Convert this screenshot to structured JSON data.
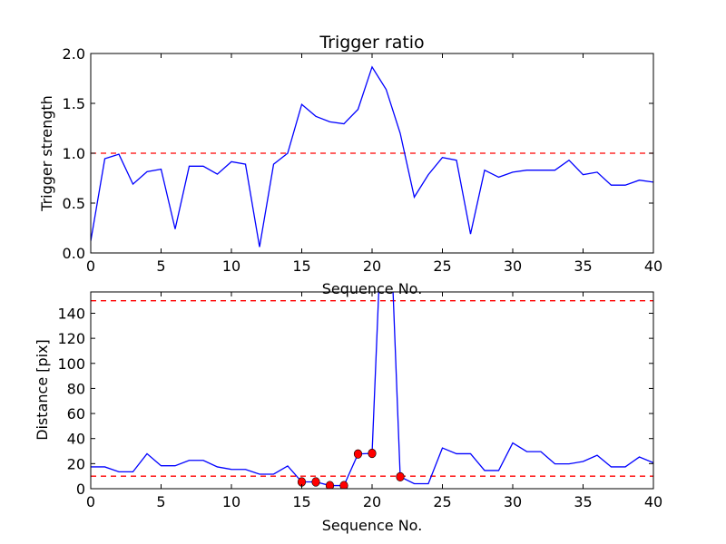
{
  "chart_data": [
    {
      "type": "line",
      "title": "Trigger ratio",
      "xlabel": "Sequence No.",
      "ylabel": "Trigger strength",
      "xlim": [
        0,
        40
      ],
      "ylim": [
        0,
        2.0
      ],
      "xticks": [
        "0",
        "5",
        "10",
        "15",
        "20",
        "25",
        "30",
        "35",
        "40"
      ],
      "yticks": [
        "0.0",
        "0.5",
        "1.0",
        "1.5",
        "2.0"
      ],
      "x": [
        0,
        1,
        2,
        3,
        4,
        5,
        6,
        7,
        8,
        9,
        10,
        11,
        12,
        13,
        14,
        15,
        16,
        17,
        18,
        19,
        20,
        21,
        22,
        23,
        24,
        25,
        26,
        27,
        28,
        29,
        30,
        31,
        32,
        33,
        34,
        35,
        36,
        37,
        38,
        39,
        40
      ],
      "series": [
        {
          "name": "trigger strength",
          "color": "#0000ff",
          "values": [
            0.12,
            0.945,
            0.99,
            0.69,
            0.815,
            0.84,
            0.24,
            0.87,
            0.87,
            0.79,
            0.915,
            0.89,
            0.06,
            0.89,
            1.0,
            1.49,
            1.37,
            1.315,
            1.295,
            1.44,
            1.865,
            1.64,
            1.2,
            0.56,
            0.785,
            0.957,
            0.93,
            0.19,
            0.83,
            0.76,
            0.81,
            0.83,
            0.83,
            0.83,
            0.93,
            0.785,
            0.81,
            0.68,
            0.68,
            0.73,
            0.71
          ]
        }
      ],
      "thresholds": [
        {
          "value": 1.0,
          "color": "#ff0000",
          "style": "dashed"
        }
      ],
      "grid": false
    },
    {
      "type": "line",
      "title": "",
      "xlabel": "Sequence No.",
      "ylabel": "Distance [pix]",
      "xlim": [
        0,
        40
      ],
      "ylim": [
        0,
        157
      ],
      "xticks": [
        "0",
        "5",
        "10",
        "15",
        "20",
        "25",
        "30",
        "35",
        "40"
      ],
      "yticks": [
        "0",
        "20",
        "40",
        "60",
        "80",
        "100",
        "120",
        "140"
      ],
      "x": [
        0,
        1,
        2,
        3,
        4,
        5,
        6,
        7,
        8,
        9,
        10,
        11,
        12,
        13,
        14,
        15,
        16,
        17,
        18,
        19,
        20,
        21,
        22,
        23,
        24,
        25,
        26,
        27,
        28,
        29,
        30,
        31,
        32,
        33,
        34,
        35,
        36,
        37,
        38,
        39,
        40
      ],
      "series": [
        {
          "name": "distance",
          "color": "#0000ff",
          "values": [
            17.4,
            17.4,
            13.5,
            13.5,
            27.9,
            18.3,
            18.3,
            22.6,
            22.6,
            17.4,
            15.4,
            15.4,
            11.6,
            11.6,
            18.1,
            5.4,
            5.4,
            2.5,
            2.5,
            27.7,
            28.2,
            300,
            9.5,
            4,
            4,
            32.5,
            27.9,
            27.9,
            14.5,
            14.5,
            36.5,
            29.6,
            29.6,
            19.8,
            19.8,
            21.7,
            26.7,
            17.4,
            17.4,
            25.3,
            20.7
          ]
        }
      ],
      "markers": {
        "color": "#ff0000",
        "indices": [
          15,
          16,
          17,
          18,
          19,
          20,
          22
        ]
      },
      "thresholds": [
        {
          "value": 10,
          "color": "#ff0000",
          "style": "dashed"
        },
        {
          "value": 150,
          "color": "#ff0000",
          "style": "dashed"
        }
      ],
      "grid": false
    }
  ]
}
